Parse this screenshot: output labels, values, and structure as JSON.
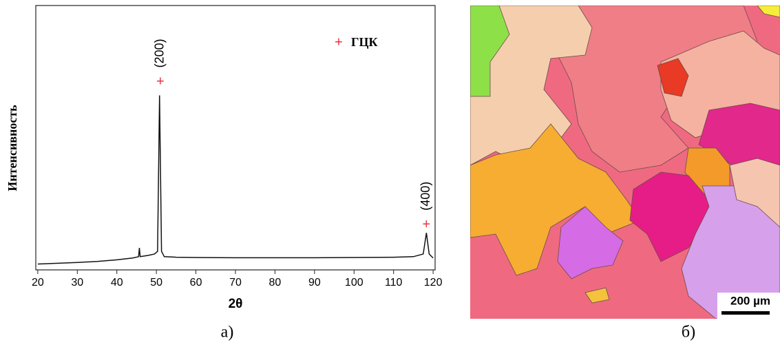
{
  "chart_data": {
    "type": "line",
    "x_label": "2θ",
    "y_label": "Интенсивность",
    "x": [
      20,
      25,
      30,
      35,
      40,
      44,
      45.5,
      45.7,
      45.9,
      48,
      49.5,
      50.3,
      50.8,
      51.3,
      52,
      55,
      60,
      70,
      80,
      90,
      100,
      110,
      115,
      117.5,
      118.3,
      119,
      120
    ],
    "values": [
      2.2,
      2.5,
      2.8,
      3.2,
      3.8,
      4.5,
      5,
      8.3,
      5,
      5.5,
      6,
      7,
      66,
      7,
      5,
      4.8,
      4.7,
      4.6,
      4.6,
      4.6,
      4.7,
      4.8,
      5,
      6,
      14,
      6,
      4.5
    ],
    "color": "#111111",
    "markers": {
      "name": "ГЦК",
      "color": "#e8323c",
      "symbol": "+",
      "x": [
        51,
        118.3
      ],
      "values": [
        71,
        17
      ],
      "labels": [
        "(200)",
        "(400)"
      ]
    },
    "xlim": [
      19.5,
      120.5
    ],
    "ylim": [
      0,
      100
    ],
    "xticks": [
      20,
      30,
      40,
      50,
      60,
      70,
      80,
      90,
      100,
      110,
      120
    ],
    "caption": "а)"
  },
  "image": {
    "scale_bar": "200 µm",
    "caption": "б)"
  }
}
